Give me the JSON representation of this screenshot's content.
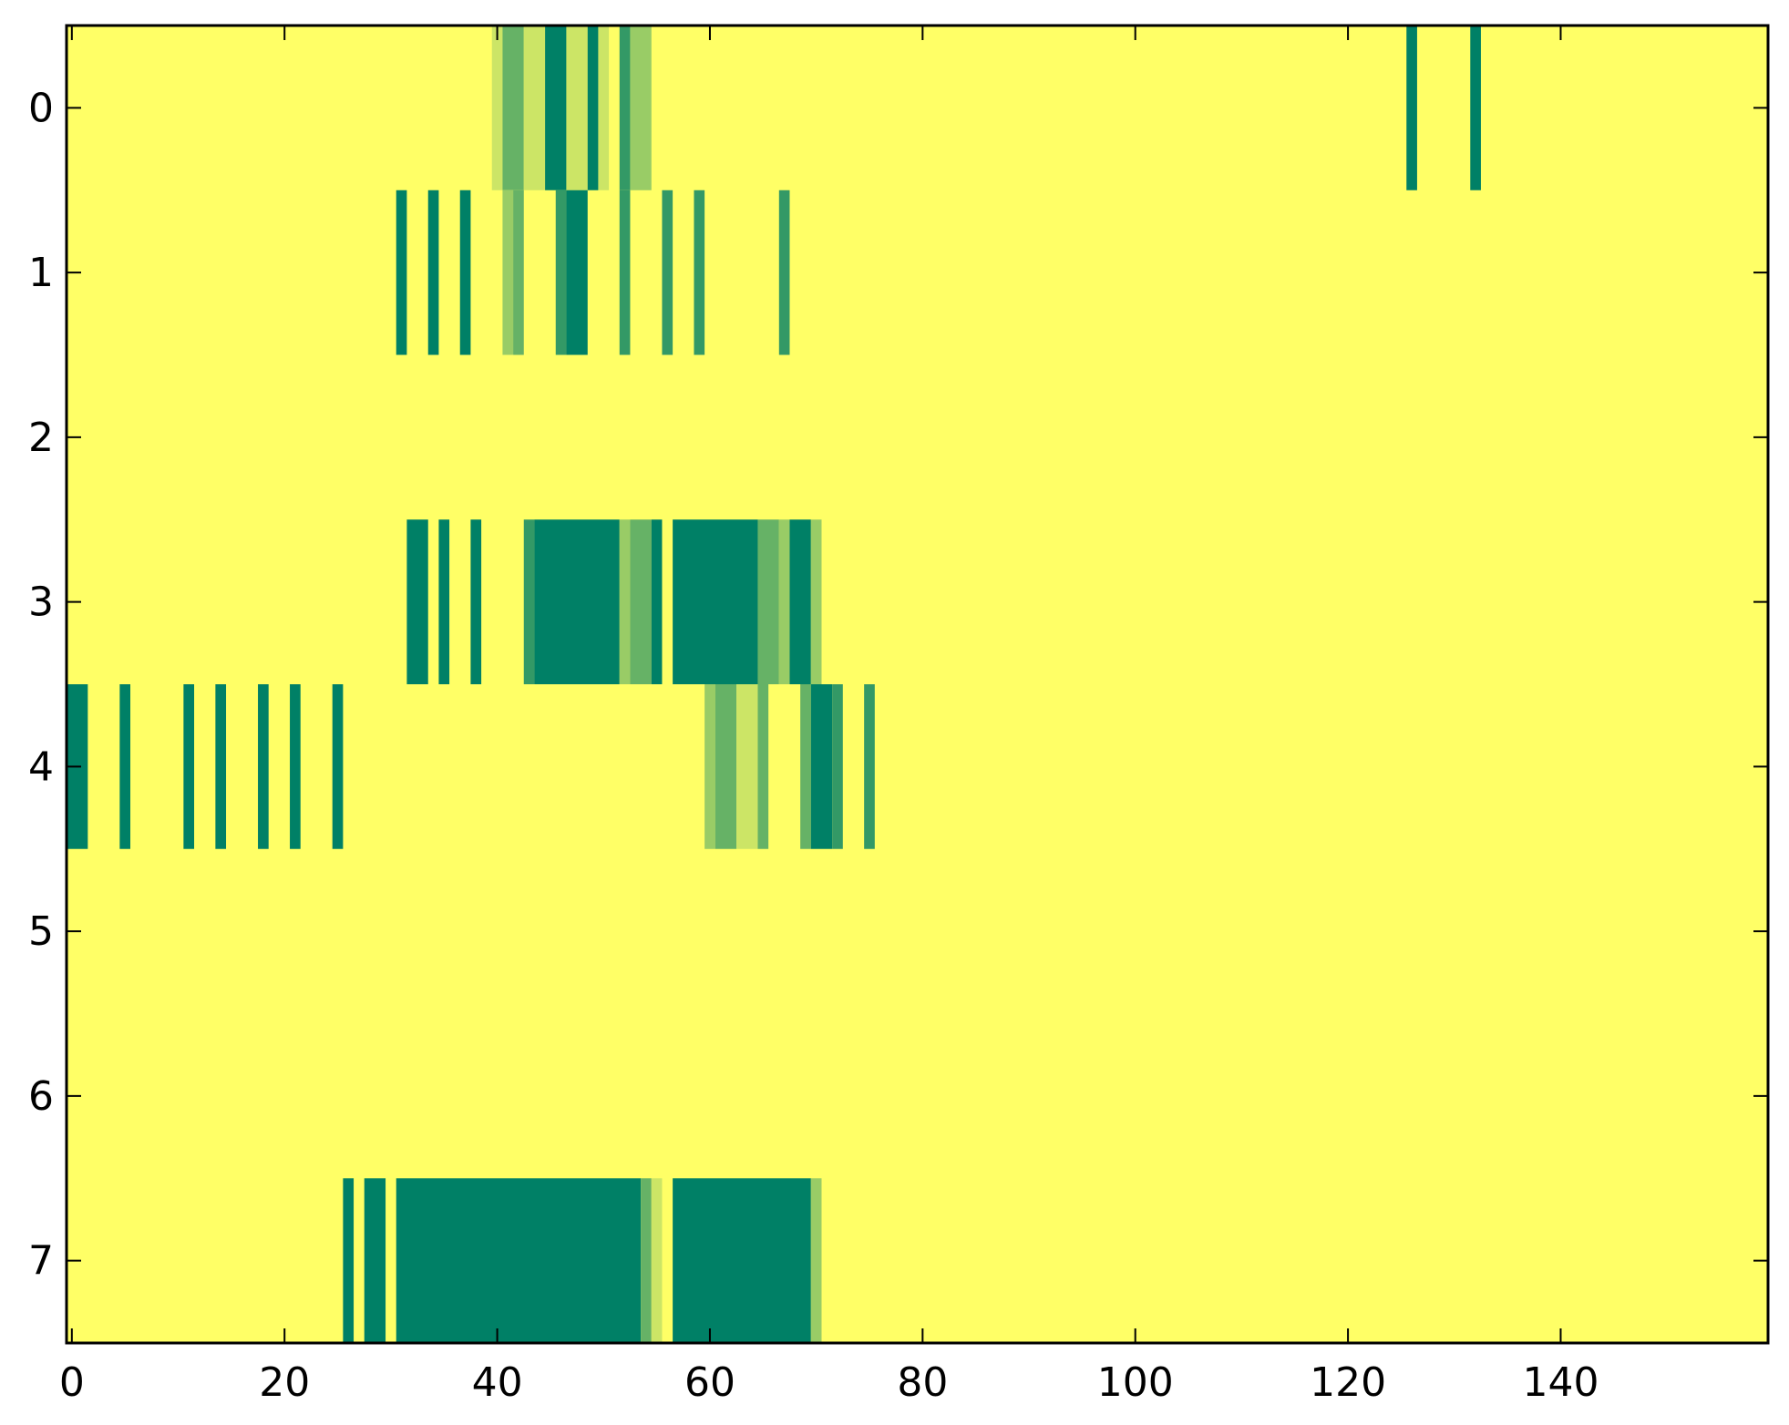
{
  "chart_data": {
    "type": "heatmap",
    "title": "",
    "xlabel": "",
    "ylabel": "",
    "xlim": [
      -0.5,
      159.5
    ],
    "ylim": [
      7.5,
      -0.5
    ],
    "grid": false,
    "x_ticks": [
      0,
      20,
      40,
      60,
      80,
      100,
      120,
      140
    ],
    "x_tick_labels": [
      "0",
      "20",
      "40",
      "60",
      "80",
      "100",
      "120",
      "140"
    ],
    "y_ticks": [
      0,
      1,
      2,
      3,
      4,
      5,
      6,
      7
    ],
    "y_tick_labels": [
      "0",
      "1",
      "2",
      "3",
      "4",
      "5",
      "6",
      "7"
    ],
    "n_columns": 160,
    "colormap": {
      "0": "#ffff66",
      "1": "#cce566",
      "2": "#99cc66",
      "3": "#66b266",
      "4": "#339966",
      "5": "#008066"
    },
    "background_level": 0,
    "rows": [
      {
        "row": 0,
        "runs": [
          [
            40,
            40,
            1
          ],
          [
            41,
            42,
            3
          ],
          [
            43,
            44,
            1
          ],
          [
            45,
            46,
            5
          ],
          [
            47,
            48,
            1
          ],
          [
            49,
            49,
            5
          ],
          [
            50,
            50,
            1
          ],
          [
            52,
            52,
            4
          ],
          [
            53,
            54,
            2
          ],
          [
            126,
            126,
            5
          ],
          [
            132,
            132,
            5
          ]
        ]
      },
      {
        "row": 1,
        "runs": [
          [
            31,
            31,
            5
          ],
          [
            34,
            34,
            5
          ],
          [
            37,
            37,
            5
          ],
          [
            41,
            41,
            2
          ],
          [
            42,
            42,
            3
          ],
          [
            46,
            46,
            4
          ],
          [
            47,
            48,
            5
          ],
          [
            52,
            52,
            4
          ],
          [
            56,
            56,
            4
          ],
          [
            59,
            59,
            4
          ],
          [
            67,
            67,
            4
          ]
        ]
      },
      {
        "row": 2,
        "runs": []
      },
      {
        "row": 3,
        "runs": [
          [
            32,
            33,
            5
          ],
          [
            35,
            35,
            5
          ],
          [
            38,
            38,
            5
          ],
          [
            43,
            43,
            4
          ],
          [
            44,
            51,
            5
          ],
          [
            52,
            52,
            2
          ],
          [
            53,
            54,
            3
          ],
          [
            55,
            55,
            5
          ],
          [
            57,
            64,
            5
          ],
          [
            65,
            66,
            3
          ],
          [
            67,
            67,
            2
          ],
          [
            68,
            69,
            5
          ],
          [
            70,
            70,
            2
          ]
        ]
      },
      {
        "row": 4,
        "runs": [
          [
            -0.5,
            1,
            5
          ],
          [
            5,
            5,
            5
          ],
          [
            11,
            11,
            5
          ],
          [
            14,
            14,
            5
          ],
          [
            18,
            18,
            5
          ],
          [
            21,
            21,
            5
          ],
          [
            25,
            25,
            5
          ],
          [
            60,
            60,
            2
          ],
          [
            61,
            62,
            3
          ],
          [
            63,
            64,
            1
          ],
          [
            65,
            65,
            3
          ],
          [
            69,
            69,
            3
          ],
          [
            70,
            71,
            5
          ],
          [
            72,
            72,
            4
          ],
          [
            75,
            75,
            4
          ]
        ]
      },
      {
        "row": 5,
        "runs": []
      },
      {
        "row": 6,
        "runs": []
      },
      {
        "row": 7,
        "runs": [
          [
            26,
            26,
            5
          ],
          [
            28,
            29,
            5
          ],
          [
            31,
            53,
            5
          ],
          [
            54,
            54,
            3
          ],
          [
            55,
            55,
            1
          ],
          [
            57,
            69,
            5
          ],
          [
            70,
            70,
            2
          ]
        ]
      }
    ]
  }
}
